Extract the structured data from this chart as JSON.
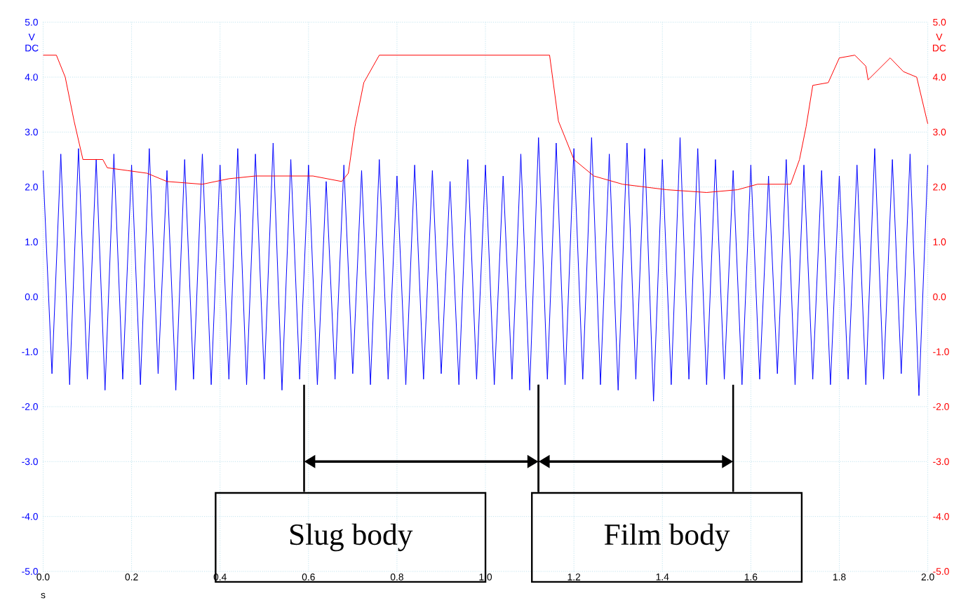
{
  "chart_data": {
    "type": "line",
    "xlabel": "s",
    "ylabel": "V DC",
    "y2label": "V DC",
    "xlim": [
      0,
      2
    ],
    "ylim": [
      -5,
      5
    ],
    "y2lim": [
      -5,
      5
    ],
    "xticks": [
      {
        "value": 0,
        "label": "0.0"
      },
      {
        "value": 0.2,
        "label": "0.2"
      },
      {
        "value": 0.4,
        "label": "0.4"
      },
      {
        "value": 0.6,
        "label": "0.6"
      },
      {
        "value": 0.8,
        "label": "0.8"
      },
      {
        "value": 1.0,
        "label": "1.0"
      },
      {
        "value": 1.2,
        "label": "1.2"
      },
      {
        "value": 1.4,
        "label": "1.4"
      },
      {
        "value": 1.6,
        "label": "1.6"
      },
      {
        "value": 1.8,
        "label": "1.8"
      },
      {
        "value": 2.0,
        "label": "2.0"
      }
    ],
    "yticks": [
      {
        "value": -5,
        "label": "-5.0"
      },
      {
        "value": -4,
        "label": "-4.0"
      },
      {
        "value": -3,
        "label": "-3.0"
      },
      {
        "value": -2,
        "label": "-2.0"
      },
      {
        "value": -1,
        "label": "-1.0"
      },
      {
        "value": 0,
        "label": "0.0"
      },
      {
        "value": 1,
        "label": "1.0"
      },
      {
        "value": 2,
        "label": "2.0"
      },
      {
        "value": 3,
        "label": "3.0"
      },
      {
        "value": 4,
        "label": "4.0"
      },
      {
        "value": 5,
        "label": "5.0"
      }
    ],
    "y2ticks": [
      {
        "value": -5,
        "label": "-5.0"
      },
      {
        "value": -4,
        "label": "-4.0"
      },
      {
        "value": -3,
        "label": "-3.0"
      },
      {
        "value": -2,
        "label": "-2.0"
      },
      {
        "value": -1,
        "label": "-1.0"
      },
      {
        "value": 0,
        "label": "0.0"
      },
      {
        "value": 1,
        "label": "1.0"
      },
      {
        "value": 2,
        "label": "2.0"
      },
      {
        "value": 3,
        "label": "3.0"
      },
      {
        "value": 4,
        "label": "4.0"
      },
      {
        "value": 5,
        "label": "5.0"
      }
    ],
    "grid": true,
    "series": [
      {
        "color": "#0000ff",
        "x": [
          0,
          0.02,
          0.04,
          0.06,
          0.08,
          0.1,
          0.12,
          0.14,
          0.16,
          0.18,
          0.2,
          0.22,
          0.24,
          0.26,
          0.28,
          0.3,
          0.32,
          0.34,
          0.36,
          0.38,
          0.4,
          0.42,
          0.44,
          0.46,
          0.48,
          0.5,
          0.52,
          0.54,
          0.56,
          0.58,
          0.6,
          0.62,
          0.64,
          0.66,
          0.68,
          0.7,
          0.72,
          0.74,
          0.76,
          0.78,
          0.8,
          0.82,
          0.84,
          0.86,
          0.88,
          0.9,
          0.92,
          0.94,
          0.96,
          0.98,
          1.0,
          1.02,
          1.04,
          1.06,
          1.08,
          1.1,
          1.12,
          1.14,
          1.16,
          1.18,
          1.2,
          1.22,
          1.24,
          1.26,
          1.28,
          1.3,
          1.32,
          1.34,
          1.36,
          1.38,
          1.4,
          1.42,
          1.44,
          1.46,
          1.48,
          1.5,
          1.52,
          1.54,
          1.56,
          1.58,
          1.6,
          1.62,
          1.64,
          1.66,
          1.68,
          1.7,
          1.72,
          1.74,
          1.76,
          1.78,
          1.8,
          1.82,
          1.84,
          1.86,
          1.88,
          1.9,
          1.92,
          1.94,
          1.96,
          1.98,
          2.0
        ],
        "values": [
          2.3,
          -1.4,
          2.6,
          -1.6,
          2.7,
          -1.5,
          2.5,
          -1.7,
          2.6,
          -1.5,
          2.4,
          -1.6,
          2.7,
          -1.4,
          2.3,
          -1.7,
          2.5,
          -1.5,
          2.6,
          -1.6,
          2.4,
          -1.5,
          2.7,
          -1.6,
          2.6,
          -1.5,
          2.8,
          -1.7,
          2.5,
          -1.5,
          2.4,
          -1.6,
          2.1,
          -1.5,
          2.4,
          -1.4,
          2.3,
          -1.6,
          2.5,
          -1.5,
          2.2,
          -1.6,
          2.4,
          -1.5,
          2.3,
          -1.4,
          2.1,
          -1.6,
          2.5,
          -1.5,
          2.4,
          -1.6,
          2.2,
          -1.5,
          2.6,
          -1.7,
          2.9,
          -1.5,
          2.8,
          -1.6,
          2.7,
          -1.5,
          2.9,
          -1.6,
          2.6,
          -1.7,
          2.8,
          -1.5,
          2.7,
          -1.9,
          2.5,
          -1.6,
          2.9,
          -1.5,
          2.7,
          -1.6,
          2.5,
          -1.5,
          2.3,
          -1.6,
          2.4,
          -1.5,
          2.2,
          -1.4,
          2.5,
          -1.6,
          2.4,
          -1.5,
          2.3,
          -1.6,
          2.2,
          -1.5,
          2.4,
          -1.6,
          2.7,
          -1.5,
          2.5,
          -1.4,
          2.6,
          -1.8,
          2.4
        ]
      },
      {
        "color": "#ff0000",
        "axis": "y2",
        "x": [
          0,
          0.03,
          0.05,
          0.07,
          0.09,
          0.135,
          0.145,
          0.19,
          0.235,
          0.28,
          0.36,
          0.42,
          0.48,
          0.61,
          0.675,
          0.69,
          0.705,
          0.725,
          0.76,
          1.145,
          1.165,
          1.2,
          1.245,
          1.31,
          1.41,
          1.5,
          1.57,
          1.615,
          1.69,
          1.71,
          1.725,
          1.74,
          1.775,
          1.8,
          1.835,
          1.86,
          1.865,
          1.915,
          1.945,
          1.975,
          2.0
        ],
        "values": [
          4.4,
          4.4,
          4.0,
          3.2,
          2.5,
          2.5,
          2.35,
          2.3,
          2.25,
          2.1,
          2.05,
          2.15,
          2.2,
          2.2,
          2.1,
          2.25,
          3.1,
          3.9,
          4.4,
          4.4,
          3.2,
          2.5,
          2.2,
          2.05,
          1.95,
          1.9,
          1.95,
          2.05,
          2.05,
          2.5,
          3.1,
          3.85,
          3.9,
          4.35,
          4.4,
          4.2,
          3.95,
          4.35,
          4.1,
          4.0,
          3.15
        ]
      }
    ],
    "annotations": [
      "Slug body",
      "Film body"
    ]
  }
}
